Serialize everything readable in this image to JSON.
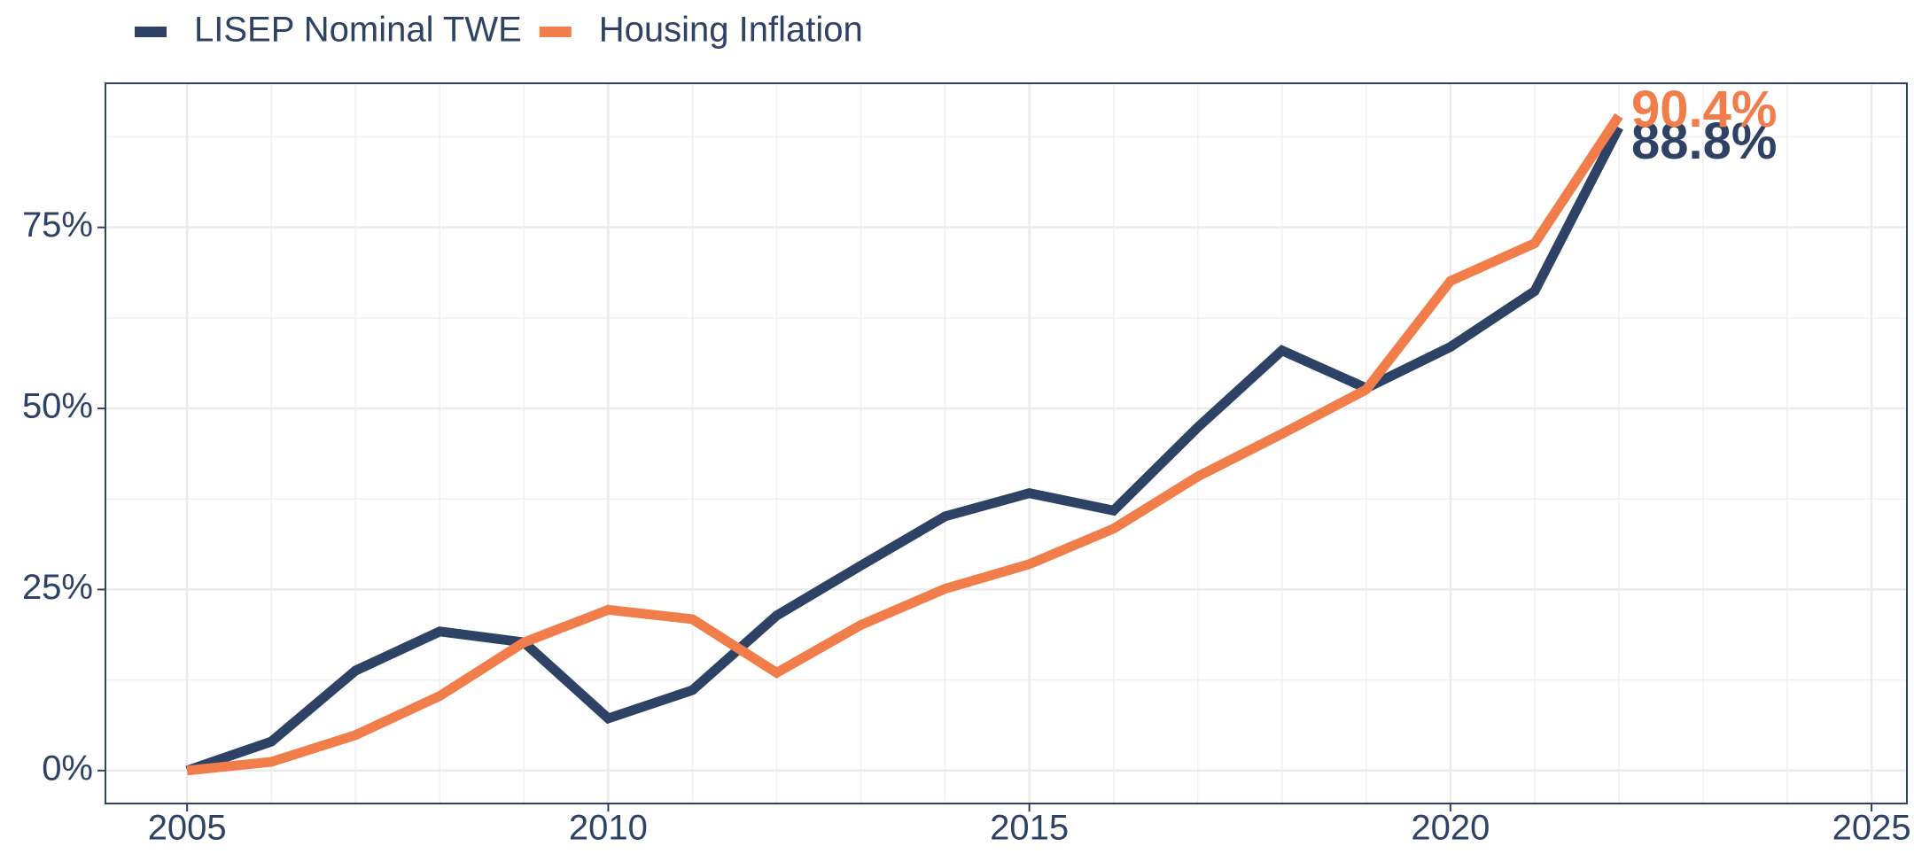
{
  "chart_data": {
    "type": "line",
    "x": [
      2005,
      2006,
      2007,
      2008,
      2009,
      2010,
      2011,
      2012,
      2013,
      2014,
      2015,
      2016,
      2017,
      2018,
      2019,
      2020,
      2021,
      2022
    ],
    "series": [
      {
        "name": "LISEP Nominal TWE",
        "color": "#2e4266",
        "values": [
          0,
          4.0,
          13.8,
          19.2,
          17.7,
          7.2,
          11.1,
          21.4,
          28.3,
          35.1,
          38.3,
          35.9,
          47.4,
          58.0,
          52.8,
          58.5,
          66.2,
          88.8
        ],
        "value_labels": [
          null,
          null,
          null,
          null,
          null,
          null,
          null,
          null,
          null,
          null,
          null,
          null,
          null,
          null,
          null,
          null,
          null,
          "88.8%"
        ]
      },
      {
        "name": "Housing Inflation",
        "color": "#f07d4a",
        "values": [
          0,
          1.2,
          4.9,
          10.3,
          17.7,
          22.2,
          20.9,
          13.5,
          20.1,
          25.1,
          28.5,
          33.4,
          40.6,
          46.5,
          52.6,
          67.6,
          72.8,
          90.4
        ],
        "value_labels": [
          null,
          null,
          null,
          null,
          null,
          null,
          null,
          null,
          null,
          null,
          null,
          null,
          null,
          null,
          null,
          null,
          null,
          "90.4%"
        ]
      }
    ],
    "xlim": [
      2004.03,
      2025.42
    ],
    "xticks": [
      2005,
      2010,
      2015,
      2020,
      2025
    ],
    "ylim": [
      -4.55,
      94.9
    ],
    "yticks": [
      {
        "value": 0,
        "label": "0%"
      },
      {
        "value": 25,
        "label": "25%"
      },
      {
        "value": 50,
        "label": "50%"
      },
      {
        "value": 75,
        "label": "75%"
      }
    ],
    "grid": true,
    "minor_grid": true,
    "legend": "top-left"
  }
}
